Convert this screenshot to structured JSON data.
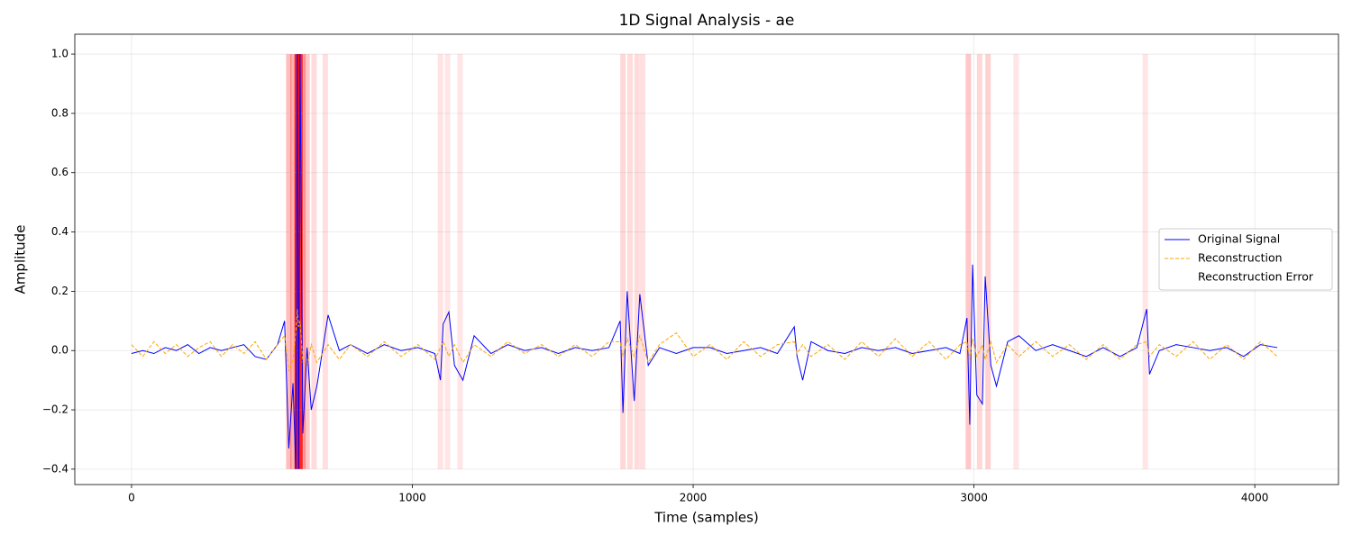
{
  "chart_data": {
    "type": "line",
    "title": "1D Signal Analysis - ae",
    "xlabel": "Time (samples)",
    "ylabel": "Amplitude",
    "xlim": [
      -202,
      4298
    ],
    "ylim": [
      -0.452,
      1.067
    ],
    "xticks": [
      0,
      1000,
      2000,
      3000,
      4000
    ],
    "yticks": [
      {
        "value": -0.4,
        "label": "−0.4"
      },
      {
        "value": -0.2,
        "label": "−0.2"
      },
      {
        "value": 0,
        "label": "0.0"
      },
      0.2,
      0.4,
      0.6,
      0.8,
      {
        "value": 1,
        "label": "1.0"
      }
    ],
    "grid": true,
    "legend": "center right",
    "x": [
      0,
      40,
      80,
      120,
      160,
      200,
      240,
      280,
      320,
      360,
      400,
      440,
      480,
      520,
      545,
      560,
      575,
      585,
      590,
      595,
      600,
      610,
      625,
      640,
      660,
      700,
      740,
      780,
      840,
      900,
      960,
      1020,
      1080,
      1100,
      1110,
      1130,
      1150,
      1180,
      1220,
      1280,
      1340,
      1400,
      1460,
      1520,
      1580,
      1640,
      1700,
      1740,
      1750,
      1765,
      1790,
      1810,
      1840,
      1880,
      1940,
      2000,
      2060,
      2120,
      2180,
      2240,
      2300,
      2360,
      2370,
      2390,
      2420,
      2480,
      2540,
      2600,
      2660,
      2720,
      2780,
      2840,
      2900,
      2950,
      2975,
      2985,
      2995,
      3010,
      3030,
      3040,
      3060,
      3080,
      3120,
      3160,
      3220,
      3280,
      3340,
      3400,
      3460,
      3520,
      3580,
      3615,
      3625,
      3660,
      3720,
      3780,
      3840,
      3900,
      3960,
      4020,
      4080
    ],
    "series": [
      {
        "name": "Original Signal",
        "color": "#0000ff",
        "values": [
          -0.01,
          0,
          -0.01,
          0.01,
          0,
          0.02,
          -0.01,
          0.01,
          0,
          0.01,
          0.02,
          -0.02,
          -0.03,
          0.02,
          0.1,
          -0.33,
          -0.11,
          -0.4,
          1,
          -0.4,
          1,
          -0.28,
          0.01,
          -0.2,
          -0.12,
          0.12,
          0,
          0.02,
          -0.01,
          0.02,
          0,
          0.01,
          -0.01,
          -0.1,
          0.09,
          0.13,
          -0.05,
          -0.1,
          0.05,
          -0.01,
          0.02,
          0,
          0.01,
          -0.01,
          0.01,
          0,
          0.01,
          0.1,
          -0.21,
          0.2,
          -0.17,
          0.19,
          -0.05,
          0.01,
          -0.01,
          0.01,
          0.01,
          -0.01,
          0,
          0.01,
          -0.01,
          0.08,
          -0.02,
          -0.1,
          0.03,
          0,
          -0.01,
          0.01,
          0,
          0.01,
          -0.01,
          0,
          0.01,
          -0.01,
          0.11,
          -0.25,
          0.29,
          -0.15,
          -0.18,
          0.25,
          -0.05,
          -0.12,
          0.03,
          0.05,
          0,
          0.02,
          0,
          -0.02,
          0.01,
          -0.02,
          0.01,
          0.14,
          -0.08,
          0,
          0.02,
          0.01,
          0,
          0.01,
          -0.02,
          0.02,
          0.01
        ]
      },
      {
        "name": "Reconstruction",
        "color": "#ffa500",
        "values": [
          0.02,
          -0.02,
          0.03,
          -0.01,
          0.02,
          -0.02,
          0.01,
          0.03,
          -0.02,
          0.02,
          -0.01,
          0.03,
          -0.03,
          0.02,
          0.05,
          -0.07,
          -0.03,
          0.06,
          0.14,
          0.08,
          0.1,
          -0.04,
          -0.05,
          0.02,
          -0.04,
          0.02,
          -0.03,
          0.02,
          -0.02,
          0.03,
          -0.02,
          0.02,
          -0.03,
          0.01,
          0.03,
          -0.02,
          0.02,
          -0.04,
          0.02,
          -0.02,
          0.03,
          -0.01,
          0.02,
          -0.02,
          0.02,
          -0.02,
          0.03,
          0.03,
          -0.02,
          0.04,
          -0.02,
          0.05,
          -0.04,
          0.02,
          0.06,
          -0.02,
          0.02,
          -0.03,
          0.03,
          -0.02,
          0.02,
          0.03,
          -0.01,
          0.02,
          -0.02,
          0.02,
          -0.03,
          0.03,
          -0.02,
          0.04,
          -0.02,
          0.03,
          -0.03,
          0.02,
          0.03,
          -0.03,
          0.04,
          -0.02,
          0.02,
          -0.03,
          0.03,
          -0.04,
          0.02,
          -0.02,
          0.03,
          -0.02,
          0.02,
          -0.03,
          0.02,
          -0.03,
          0.02,
          0.03,
          -0.02,
          0.02,
          -0.02,
          0.03,
          -0.03,
          0.02,
          -0.03,
          0.03,
          -0.02
        ]
      },
      {
        "name": "Reconstruction Error",
        "color": "#ff0000",
        "x": [
          560,
          575,
          590,
          600,
          610,
          625,
          650,
          690,
          1100,
          1125,
          1170,
          1750,
          1775,
          1800,
          1820,
          2980,
          3020,
          3050,
          3150,
          3610
        ],
        "values": [
          0.25,
          0.3,
          1,
          0.9,
          0.35,
          0.2,
          0.1,
          0.08,
          0.06,
          0.05,
          0.05,
          0.12,
          0.1,
          0.1,
          0.08,
          0.2,
          0.12,
          0.15,
          0.05,
          0.05
        ]
      }
    ]
  }
}
